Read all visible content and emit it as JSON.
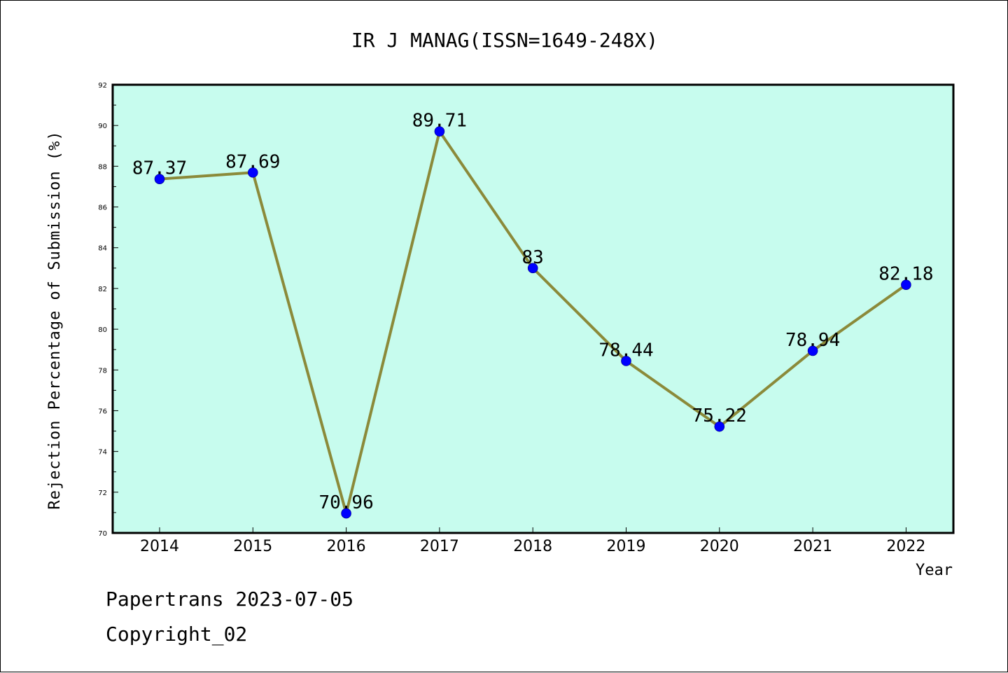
{
  "colors": {
    "plot_background": "#c7fcee",
    "line": "#8b8a3a",
    "marker": "#0000ff",
    "axis": "#000000"
  },
  "chart_data": {
    "type": "line",
    "title": "IR J MANAG(ISSN=1649-248X)",
    "xlabel": "Year",
    "ylabel": "Rejection Percentage of Submission (%)",
    "x": [
      "2014",
      "2015",
      "2016",
      "2017",
      "2018",
      "2019",
      "2020",
      "2021",
      "2022"
    ],
    "series": [
      {
        "values": [
          87.37,
          87.69,
          70.96,
          89.71,
          83,
          78.44,
          75.22,
          78.94,
          82.18
        ],
        "labels": [
          "87.37",
          "87.69",
          "70.96",
          "89.71",
          "83",
          "78.44",
          "75.22",
          "78.94",
          "82.18"
        ]
      }
    ],
    "ylim": [
      70,
      92
    ],
    "yticks": [
      "70",
      "72",
      "74",
      "76",
      "78",
      "80",
      "82",
      "84",
      "86",
      "88",
      "90",
      "92"
    ],
    "grid": false,
    "legend": "none"
  },
  "footer": {
    "line1": "Papertrans 2023-07-05",
    "line2": "Copyright_02"
  }
}
